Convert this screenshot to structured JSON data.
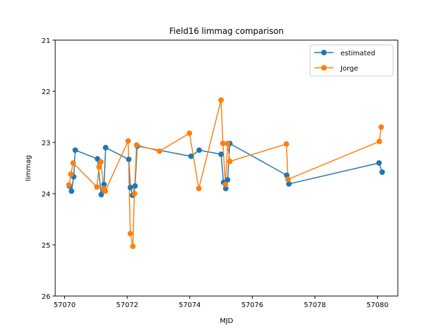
{
  "chart_data": {
    "type": "line",
    "title": "Field16 limmag comparison",
    "xlabel": "MJD",
    "ylabel": "limmag",
    "xlim": [
      57069.7,
      57080.65
    ],
    "ylim": [
      26,
      21
    ],
    "y_inverted": true,
    "xticks": [
      57070,
      57072,
      57074,
      57076,
      57078,
      57080
    ],
    "yticks": [
      21,
      22,
      23,
      24,
      25,
      26
    ],
    "grid": false,
    "legend_position": "top-right",
    "series": [
      {
        "name": "estimated",
        "color": "#1f77b4",
        "x": [
          57070.15,
          57070.22,
          57070.29,
          57070.34,
          57071.05,
          57071.17,
          57071.26,
          57071.31,
          57072.05,
          57072.1,
          57072.17,
          57072.25,
          57072.32,
          57074.04,
          57074.3,
          57075.0,
          57075.08,
          57075.15,
          57075.21,
          57075.28,
          57077.1,
          57077.17,
          57080.05,
          57080.15
        ],
        "y": [
          23.85,
          23.95,
          23.67,
          23.15,
          23.32,
          24.02,
          23.82,
          23.1,
          23.33,
          23.88,
          24.03,
          23.85,
          23.07,
          23.27,
          23.15,
          23.23,
          23.78,
          23.9,
          23.73,
          23.02,
          23.64,
          23.81,
          23.4,
          23.58
        ]
      },
      {
        "name": "Jorge",
        "color": "#ff7f0e",
        "x": [
          57070.14,
          57070.2,
          57070.27,
          57071.03,
          57071.1,
          57071.16,
          57071.25,
          57071.3,
          57072.03,
          57072.1,
          57072.18,
          57072.23,
          57072.3,
          57073.03,
          57073.99,
          57074.29,
          57075.0,
          57075.06,
          57075.14,
          57075.21,
          57075.28,
          57077.09,
          57077.14,
          57080.06,
          57080.12
        ],
        "y": [
          23.83,
          23.62,
          23.4,
          23.87,
          23.48,
          23.38,
          23.9,
          23.95,
          22.97,
          24.78,
          25.03,
          24.0,
          23.05,
          23.17,
          22.82,
          23.9,
          22.17,
          23.02,
          23.82,
          23.02,
          23.37,
          23.03,
          23.72,
          22.98,
          22.7
        ]
      }
    ]
  }
}
